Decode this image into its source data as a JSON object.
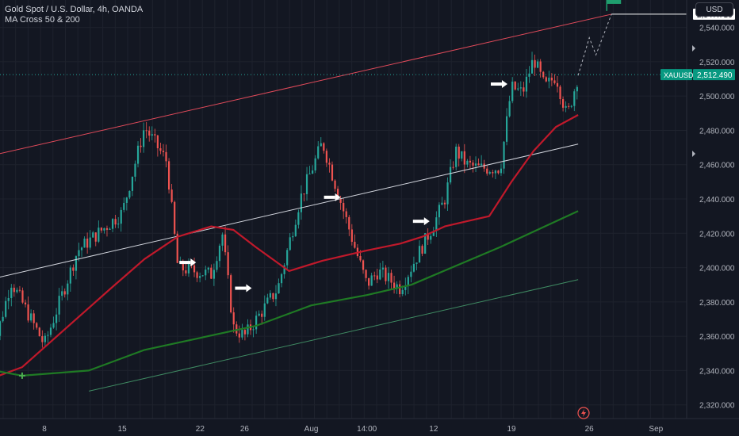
{
  "legend": {
    "symbol": "Gold Spot / U.S. Dollar, 4h, OANDA",
    "indicator": "MA Cross 50 & 200"
  },
  "currency_button": "USD",
  "colors": {
    "background": "#131722",
    "grid": "#1e222d",
    "candle_up": "#26a69a",
    "candle_down": "#ef5350",
    "ma50": "#c0192b",
    "ma200": "#1f7a24",
    "channel_top": "#e04a5a",
    "channel_mid": "#d1d4dc",
    "channel_bottom": "#3f8a62",
    "last_price_label": "#089981"
  },
  "chart_data": {
    "type": "candlestick",
    "title": "Gold Spot / U.S. Dollar, 4h, OANDA",
    "indicator": "MA Cross 50 & 200",
    "y_axis": {
      "range": [
        2312,
        2556
      ],
      "ticks": [
        2320,
        2340,
        2360,
        2380,
        2400,
        2420,
        2440,
        2460,
        2480,
        2500,
        2520,
        2540
      ],
      "tick_labels": [
        "2,320.000",
        "2,340.000",
        "2,360.000",
        "2,380.000",
        "2,400.000",
        "2,420.000",
        "2,440.000",
        "2,460.000",
        "2,480.000",
        "2,500.000",
        "2,520.000",
        "2,540.000"
      ]
    },
    "x_axis": {
      "ticks": [
        "8",
        "15",
        "22",
        "26",
        "Aug",
        "14:00",
        "12",
        "19",
        "26",
        "Sep"
      ],
      "tick_dates": [
        "2024-07-08",
        "2024-07-15",
        "2024-07-22",
        "2024-07-26",
        "2024-08-01",
        "2024-08-06",
        "2024-08-12",
        "2024-08-19",
        "2024-08-26",
        "2024-09-01"
      ]
    },
    "symbol_label": "XAUUSD",
    "last_price": 2512.49,
    "last_price_label": "2,512.490",
    "target_price": 2547.716,
    "target_price_label": "2,547.716",
    "anchor_points": [
      {
        "date": "2024-07-03",
        "price": 2342
      },
      {
        "date": "2024-07-05",
        "price": 2392
      },
      {
        "date": "2024-07-08",
        "price": 2355
      },
      {
        "date": "2024-07-11",
        "price": 2410
      },
      {
        "date": "2024-07-15",
        "price": 2432
      },
      {
        "date": "2024-07-17",
        "price": 2482
      },
      {
        "date": "2024-07-19",
        "price": 2462
      },
      {
        "date": "2024-07-20",
        "price": 2400
      },
      {
        "date": "2024-07-23",
        "price": 2396
      },
      {
        "date": "2024-07-24",
        "price": 2420
      },
      {
        "date": "2024-07-25",
        "price": 2365
      },
      {
        "date": "2024-07-26",
        "price": 2360
      },
      {
        "date": "2024-07-29",
        "price": 2388
      },
      {
        "date": "2024-07-31",
        "price": 2440
      },
      {
        "date": "2024-08-02",
        "price": 2473
      },
      {
        "date": "2024-08-05",
        "price": 2410
      },
      {
        "date": "2024-08-06",
        "price": 2390
      },
      {
        "date": "2024-08-07",
        "price": 2398
      },
      {
        "date": "2024-08-09",
        "price": 2388
      },
      {
        "date": "2024-08-12",
        "price": 2425
      },
      {
        "date": "2024-08-13",
        "price": 2440
      },
      {
        "date": "2024-08-14",
        "price": 2468
      },
      {
        "date": "2024-08-15",
        "price": 2460
      },
      {
        "date": "2024-08-16",
        "price": 2458
      },
      {
        "date": "2024-08-18",
        "price": 2458
      },
      {
        "date": "2024-08-19",
        "price": 2505
      },
      {
        "date": "2024-08-20",
        "price": 2502
      },
      {
        "date": "2024-08-21",
        "price": 2522
      },
      {
        "date": "2024-08-22",
        "price": 2505
      },
      {
        "date": "2024-08-23",
        "price": 2512
      },
      {
        "date": "2024-08-24",
        "price": 2488
      },
      {
        "date": "2024-08-25",
        "price": 2512
      }
    ],
    "series": [
      {
        "name": "MA 50",
        "color": "#c0192b",
        "points": [
          {
            "date": "2024-07-01",
            "price": 2330
          },
          {
            "date": "2024-07-06",
            "price": 2342
          },
          {
            "date": "2024-07-10",
            "price": 2365
          },
          {
            "date": "2024-07-14",
            "price": 2388
          },
          {
            "date": "2024-07-17",
            "price": 2405
          },
          {
            "date": "2024-07-20",
            "price": 2418
          },
          {
            "date": "2024-07-23",
            "price": 2424
          },
          {
            "date": "2024-07-25",
            "price": 2422
          },
          {
            "date": "2024-07-27",
            "price": 2412
          },
          {
            "date": "2024-07-30",
            "price": 2398
          },
          {
            "date": "2024-08-02",
            "price": 2404
          },
          {
            "date": "2024-08-06",
            "price": 2410
          },
          {
            "date": "2024-08-09",
            "price": 2414
          },
          {
            "date": "2024-08-11",
            "price": 2418
          },
          {
            "date": "2024-08-13",
            "price": 2424
          },
          {
            "date": "2024-08-15",
            "price": 2427
          },
          {
            "date": "2024-08-17",
            "price": 2430
          },
          {
            "date": "2024-08-19",
            "price": 2450
          },
          {
            "date": "2024-08-21",
            "price": 2468
          },
          {
            "date": "2024-08-23",
            "price": 2482
          },
          {
            "date": "2024-08-25",
            "price": 2489
          }
        ]
      },
      {
        "name": "MA 200",
        "color": "#1f7a24",
        "points": [
          {
            "date": "2024-07-01",
            "price": 2343
          },
          {
            "date": "2024-07-06",
            "price": 2337
          },
          {
            "date": "2024-07-12",
            "price": 2340
          },
          {
            "date": "2024-07-17",
            "price": 2352
          },
          {
            "date": "2024-07-22",
            "price": 2359
          },
          {
            "date": "2024-07-27",
            "price": 2366
          },
          {
            "date": "2024-08-01",
            "price": 2378
          },
          {
            "date": "2024-08-06",
            "price": 2384
          },
          {
            "date": "2024-08-10",
            "price": 2390
          },
          {
            "date": "2024-08-14",
            "price": 2401
          },
          {
            "date": "2024-08-18",
            "price": 2412
          },
          {
            "date": "2024-08-22",
            "price": 2424
          },
          {
            "date": "2024-08-25",
            "price": 2433
          }
        ]
      }
    ],
    "trendlines": [
      {
        "name": "channel-top",
        "color": "#e04a5a",
        "from": {
          "date": "2024-07-01",
          "price": 2462
        },
        "to": {
          "date": "2024-08-28",
          "price": 2547.716
        }
      },
      {
        "name": "channel-mid",
        "color": "#d1d4dc",
        "from": {
          "date": "2024-07-01",
          "price": 2390
        },
        "to": {
          "date": "2024-08-25",
          "price": 2472
        }
      },
      {
        "name": "channel-bottom",
        "color": "#3f8a62",
        "from": {
          "date": "2024-07-12",
          "price": 2328
        },
        "to": {
          "date": "2024-08-25",
          "price": 2393
        }
      }
    ],
    "projection": [
      {
        "date": "2024-08-25",
        "price": 2512
      },
      {
        "date": "2024-08-26",
        "price": 2534
      },
      {
        "date": "2024-08-26.6",
        "price": 2524
      },
      {
        "date": "2024-08-28",
        "price": 2547.716
      }
    ],
    "arrow_markers": [
      {
        "date": "2024-07-21",
        "price": 2403
      },
      {
        "date": "2024-07-26",
        "price": 2388
      },
      {
        "date": "2024-08-03",
        "price": 2441
      },
      {
        "date": "2024-08-11",
        "price": 2427
      },
      {
        "date": "2024-08-18",
        "price": 2507
      }
    ],
    "cross_marker": {
      "date": "2024-07-06",
      "price": 2337
    },
    "grid": true,
    "legend_position": "top-left"
  }
}
